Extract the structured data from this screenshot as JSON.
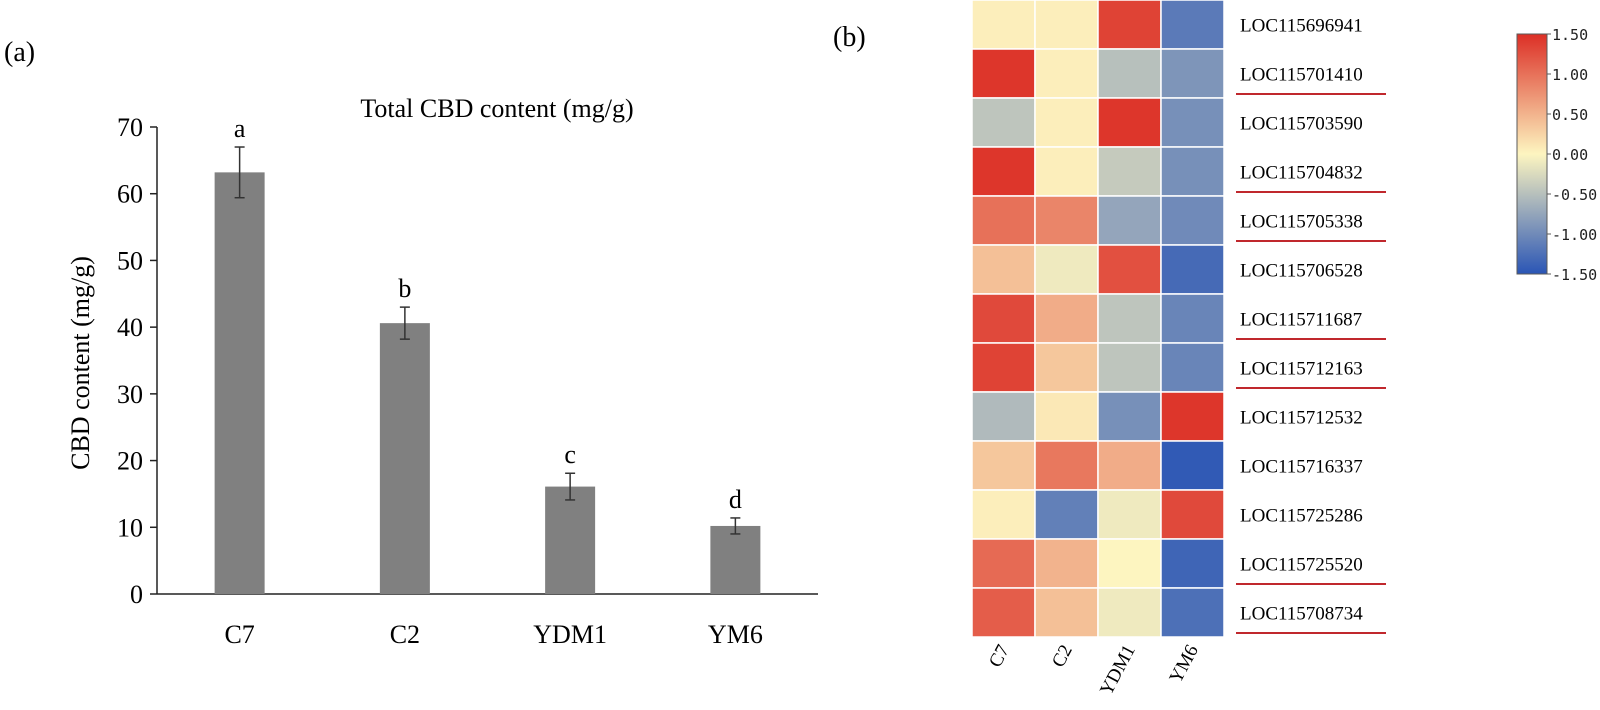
{
  "panel_labels": {
    "a": "(a)",
    "b": "(b)"
  },
  "chart_data": [
    {
      "type": "bar",
      "title": "Total CBD content (mg/g)",
      "xlabel": "",
      "ylabel": "CBD content (mg/g)",
      "ylim": [
        0,
        70
      ],
      "yticks": [
        0,
        10,
        20,
        30,
        40,
        50,
        60,
        70
      ],
      "categories": [
        "C7",
        "C2",
        "YDM1",
        "YM6"
      ],
      "values": [
        63.2,
        40.6,
        16.1,
        10.2
      ],
      "errors": [
        3.8,
        2.4,
        2.0,
        1.2
      ],
      "significance_letters": [
        "a",
        "b",
        "c",
        "d"
      ],
      "bar_color": "#808080",
      "grid": false
    },
    {
      "type": "heatmap",
      "columns": [
        "C7",
        "C2",
        "YDM1",
        "YM6"
      ],
      "rows": [
        {
          "label": "LOC115696941",
          "values": [
            0.05,
            0.05,
            1.35,
            -1.15
          ],
          "underlined": false
        },
        {
          "label": "LOC115701410",
          "values": [
            1.45,
            0.05,
            -0.5,
            -0.9
          ],
          "underlined": true
        },
        {
          "label": "LOC115703590",
          "values": [
            -0.45,
            0.05,
            1.45,
            -0.95
          ],
          "underlined": false
        },
        {
          "label": "LOC115704832",
          "values": [
            1.45,
            0.05,
            -0.4,
            -0.95
          ],
          "underlined": true
        },
        {
          "label": "LOC115705338",
          "values": [
            1.0,
            0.85,
            -0.75,
            -1.0
          ],
          "underlined": true
        },
        {
          "label": "LOC115706528",
          "values": [
            0.4,
            -0.1,
            1.25,
            -1.3
          ],
          "underlined": false
        },
        {
          "label": "LOC115711687",
          "values": [
            1.3,
            0.55,
            -0.45,
            -1.05
          ],
          "underlined": true
        },
        {
          "label": "LOC115712163",
          "values": [
            1.35,
            0.35,
            -0.45,
            -1.05
          ],
          "underlined": true
        },
        {
          "label": "LOC115712532",
          "values": [
            -0.55,
            0.1,
            -0.95,
            1.45
          ],
          "underlined": false
        },
        {
          "label": "LOC115716337",
          "values": [
            0.35,
            0.95,
            0.55,
            -1.45
          ],
          "underlined": false
        },
        {
          "label": "LOC115725286",
          "values": [
            0.05,
            -1.1,
            -0.1,
            1.3
          ],
          "underlined": false
        },
        {
          "label": "LOC115725520",
          "values": [
            1.05,
            0.5,
            0.0,
            -1.35
          ],
          "underlined": true
        },
        {
          "label": "LOC115708734",
          "values": [
            1.15,
            0.4,
            -0.1,
            -1.25
          ],
          "underlined": true
        }
      ],
      "scale": {
        "min": -1.5,
        "max": 1.5,
        "ticks": [
          "1.50",
          "1.00",
          "0.50",
          "0.00",
          "-0.50",
          "-1.00",
          "-1.50"
        ],
        "colors": {
          "low": "#2a55b5",
          "mid": "#fdf5c0",
          "high": "#dc2f26"
        }
      },
      "underline_color": "#c0282d"
    }
  ]
}
